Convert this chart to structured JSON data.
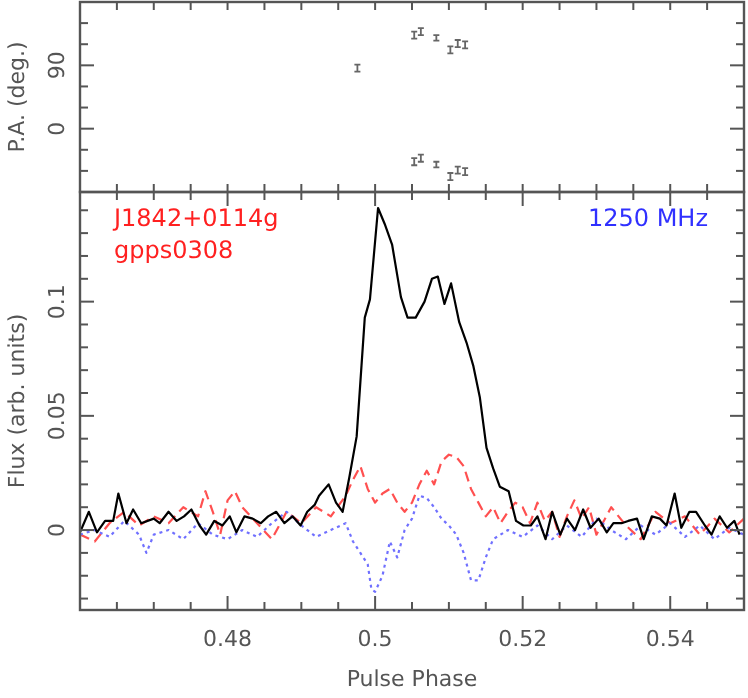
{
  "chart_data": [
    {
      "type": "scatter",
      "ylabel": "P.A. (deg.)",
      "xlim": [
        0.46,
        0.55
      ],
      "xticks": [
        {
          "value": 0.465,
          "label": null
        },
        {
          "value": 0.47,
          "label": null
        },
        {
          "value": 0.475,
          "label": null
        },
        {
          "value": 0.48,
          "label": null
        },
        {
          "value": 0.485,
          "label": null
        },
        {
          "value": 0.49,
          "label": null
        },
        {
          "value": 0.495,
          "label": null
        },
        {
          "value": 0.5,
          "label": null
        },
        {
          "value": 0.505,
          "label": null
        },
        {
          "value": 0.51,
          "label": null
        },
        {
          "value": 0.515,
          "label": null
        },
        {
          "value": 0.52,
          "label": null
        },
        {
          "value": 0.525,
          "label": null
        },
        {
          "value": 0.53,
          "label": null
        },
        {
          "value": 0.535,
          "label": null
        },
        {
          "value": 0.54,
          "label": null
        },
        {
          "value": 0.545,
          "label": null
        }
      ],
      "ylim": [
        -90,
        180
      ],
      "yticks": [
        {
          "value": -60,
          "label": null
        },
        {
          "value": -30,
          "label": null
        },
        0,
        {
          "value": 30,
          "label": null
        },
        {
          "value": 60,
          "label": null
        },
        90,
        {
          "value": 120,
          "label": null
        },
        {
          "value": 150,
          "label": null
        }
      ],
      "tick_labels": "y",
      "series": [
        {
          "color": "#666666",
          "x": [
            0.4976,
            0.5053,
            0.5062,
            0.5083,
            0.5102,
            0.5112,
            0.5122,
            0.5053,
            0.5062,
            0.5083,
            0.5102,
            0.5112,
            0.5122
          ],
          "values": [
            86,
            133,
            138,
            129,
            112,
            121,
            119,
            -47,
            -42,
            -51,
            -68,
            -59,
            -61
          ],
          "errors": [
            5,
            5,
            5,
            4,
            5,
            5,
            5,
            5,
            5,
            4,
            5,
            5,
            5
          ]
        }
      ]
    },
    {
      "type": "line",
      "xlabel": "Pulse Phase",
      "ylabel": "Flux (arb. units)",
      "xlim": [
        0.46,
        0.55
      ],
      "xticks": [
        {
          "value": 0.465,
          "label": null
        },
        {
          "value": 0.47,
          "label": null
        },
        {
          "value": 0.475,
          "label": null
        },
        0.48,
        {
          "value": 0.485,
          "label": null
        },
        {
          "value": 0.49,
          "label": null
        },
        {
          "value": 0.495,
          "label": null
        },
        {
          "value": 0.5,
          "label": "0.5"
        },
        {
          "value": 0.505,
          "label": null
        },
        {
          "value": 0.51,
          "label": null
        },
        {
          "value": 0.515,
          "label": null
        },
        0.52,
        {
          "value": 0.525,
          "label": null
        },
        {
          "value": 0.53,
          "label": null
        },
        {
          "value": 0.535,
          "label": null
        },
        0.54,
        {
          "value": 0.545,
          "label": null
        }
      ],
      "ylim": [
        -0.035,
        0.148
      ],
      "yticks": [
        {
          "value": -0.03,
          "label": null
        },
        {
          "value": -0.02,
          "label": null
        },
        {
          "value": -0.01,
          "label": null
        },
        0,
        {
          "value": 0.01,
          "label": null
        },
        {
          "value": 0.02,
          "label": null
        },
        {
          "value": 0.03,
          "label": null
        },
        {
          "value": 0.04,
          "label": null
        },
        0.05,
        {
          "value": 0.06,
          "label": null
        },
        {
          "value": 0.07,
          "label": null
        },
        {
          "value": 0.08,
          "label": null
        },
        {
          "value": 0.09,
          "label": null
        },
        0.1,
        {
          "value": 0.11,
          "label": null
        },
        {
          "value": 0.12,
          "label": null
        },
        {
          "value": 0.13,
          "label": null
        },
        {
          "value": 0.14,
          "label": null
        }
      ],
      "annotations": [
        "J1842+0114g",
        "gpps0308",
        "1250 MHz"
      ],
      "series": [
        {
          "color": "#ff5050",
          "line_style": "dashed",
          "x": [
            0.46,
            0.462,
            0.464,
            0.466,
            0.468,
            0.47,
            0.472,
            0.474,
            0.476,
            0.477,
            0.478,
            0.479,
            0.48,
            0.481,
            0.482,
            0.484,
            0.486,
            0.488,
            0.49,
            0.492,
            0.494,
            0.496,
            0.497,
            0.498,
            0.499,
            0.5,
            0.501,
            0.502,
            0.503,
            0.504,
            0.505,
            0.506,
            0.507,
            0.508,
            0.509,
            0.51,
            0.511,
            0.512,
            0.513,
            0.514,
            0.515,
            0.516,
            0.517,
            0.518,
            0.519,
            0.52,
            0.521,
            0.522,
            0.523,
            0.524,
            0.525,
            0.526,
            0.527,
            0.528,
            0.529,
            0.53,
            0.532,
            0.534,
            0.536,
            0.538,
            0.54,
            0.542,
            0.544,
            0.546,
            0.548,
            0.55
          ],
          "values": [
            -0.002,
            -0.005,
            0.003,
            0.008,
            0.002,
            0.006,
            0.003,
            0.01,
            0.006,
            0.017,
            0.008,
            -0.002,
            0.013,
            0.017,
            0.01,
            0.003,
            -0.004,
            0.008,
            0.003,
            0.01,
            0.006,
            0.015,
            0.022,
            0.028,
            0.018,
            0.012,
            0.016,
            0.018,
            0.012,
            0.008,
            0.012,
            0.02,
            0.026,
            0.02,
            0.03,
            0.033,
            0.032,
            0.028,
            0.018,
            0.012,
            0.006,
            0.01,
            0.003,
            0.008,
            0.012,
            0.01,
            0.003,
            0.012,
            0.004,
            0.008,
            -0.003,
            0.006,
            0.013,
            0.005,
            0.01,
            -0.002,
            0.01,
            0.002,
            -0.004,
            0.008,
            0.003,
            0.006,
            -0.002,
            0.005,
            -0.001,
            0.005
          ]
        },
        {
          "color": "#7070ff",
          "line_style": "dotted",
          "x": [
            0.46,
            0.462,
            0.464,
            0.466,
            0.468,
            0.469,
            0.47,
            0.472,
            0.474,
            0.476,
            0.478,
            0.48,
            0.482,
            0.484,
            0.486,
            0.488,
            0.49,
            0.492,
            0.494,
            0.496,
            0.497,
            0.498,
            0.499,
            0.4995,
            0.5,
            0.501,
            0.502,
            0.503,
            0.504,
            0.505,
            0.506,
            0.507,
            0.508,
            0.509,
            0.51,
            0.511,
            0.512,
            0.513,
            0.514,
            0.515,
            0.516,
            0.518,
            0.52,
            0.522,
            0.524,
            0.526,
            0.528,
            0.53,
            0.532,
            0.534,
            0.536,
            0.538,
            0.54,
            0.542,
            0.544,
            0.546,
            0.548,
            0.55
          ],
          "values": [
            -0.002,
            0,
            -0.003,
            0.004,
            -0.002,
            -0.01,
            -0.002,
            0,
            -0.004,
            0.003,
            -0.002,
            -0.004,
            0,
            -0.003,
            0.003,
            0.008,
            0.002,
            -0.003,
            0,
            0.003,
            -0.005,
            -0.01,
            -0.015,
            -0.026,
            -0.027,
            -0.02,
            -0.005,
            -0.012,
            0,
            0.005,
            0.015,
            0.014,
            0.01,
            0.005,
            0.002,
            -0.002,
            -0.01,
            -0.022,
            -0.022,
            -0.012,
            -0.004,
            0,
            -0.003,
            0.002,
            -0.004,
            0.002,
            -0.003,
            0.005,
            0,
            -0.004,
            0.002,
            -0.002,
            0.003,
            -0.003,
            0.002,
            -0.004,
            0.001,
            -0.002
          ]
        },
        {
          "color": "#000000",
          "line_style": "solid",
          "x": [
            0.46,
            0.4612,
            0.4623,
            0.4634,
            0.4645,
            0.4652,
            0.4663,
            0.4672,
            0.4683,
            0.47,
            0.4708,
            0.472,
            0.4731,
            0.4741,
            0.4751,
            0.4762,
            0.4771,
            0.4782,
            0.4793,
            0.4803,
            0.4812,
            0.4823,
            0.4834,
            0.4845,
            0.4855,
            0.4866,
            0.4877,
            0.4888,
            0.4899,
            0.4908,
            0.4918,
            0.4924,
            0.4937,
            0.4947,
            0.4956,
            0.4965,
            0.4975,
            0.4986,
            0.4993,
            0.5004,
            0.5013,
            0.5023,
            0.5035,
            0.5044,
            0.5055,
            0.5067,
            0.5077,
            0.5085,
            0.5094,
            0.5103,
            0.5114,
            0.5124,
            0.5133,
            0.5142,
            0.5151,
            0.516,
            0.5169,
            0.5181,
            0.5191,
            0.5201,
            0.5211,
            0.522,
            0.5231,
            0.524,
            0.5251,
            0.526,
            0.5271,
            0.5282,
            0.5292,
            0.5303,
            0.5314,
            0.5323,
            0.5334,
            0.5343,
            0.5355,
            0.5364,
            0.5375,
            0.5386,
            0.5395,
            0.5406,
            0.5415,
            0.5426,
            0.5435,
            0.5447,
            0.5456,
            0.5467,
            0.5477,
            0.5487,
            0.5494
          ],
          "values": [
            -0.001,
            0.008,
            -0.001,
            0.004,
            0.004,
            0.016,
            0.003,
            0.009,
            0.003,
            0.005,
            0.003,
            0.008,
            0.004,
            0.006,
            0.009,
            0.002,
            -0.002,
            0.004,
            0.002,
            0.006,
            -0.001,
            0.006,
            0.005,
            0.003,
            0.006,
            0.008,
            0.003,
            0.006,
            0.002,
            0.008,
            0.011,
            0.015,
            0.02,
            0.012,
            0.008,
            0.023,
            0.041,
            0.093,
            0.101,
            0.141,
            0.134,
            0.125,
            0.102,
            0.093,
            0.093,
            0.1,
            0.11,
            0.111,
            0.099,
            0.108,
            0.091,
            0.082,
            0.072,
            0.058,
            0.036,
            0.027,
            0.019,
            0.017,
            0.004,
            0.002,
            0.002,
            0.006,
            -0.004,
            0.008,
            -0.002,
            0.005,
            0,
            0.009,
            0.001,
            0.005,
            -0.001,
            0.003,
            0.003,
            0.004,
            0.005,
            -0.004,
            0.006,
            0.005,
            0.002,
            0.016,
            0.001,
            0.008,
            0.008,
            0.002,
            -0.002,
            0.006,
            0.001,
            0.004,
            -0.002
          ]
        }
      ]
    }
  ]
}
